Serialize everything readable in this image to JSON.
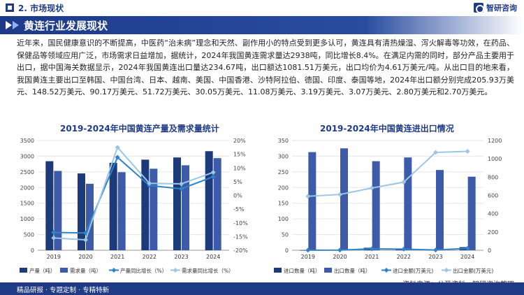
{
  "header": {
    "section": "2. 市场现状",
    "logo": "智研咨询",
    "icons": [
      "section-square-icon",
      "logo-mark-icon",
      "title-arrow-icon"
    ]
  },
  "title": "黄连行业发展现状",
  "paragraph": "近年来，国民健康意识的不断提高，中医药“治未病”理念和天然、副作用小的特点受到更多认可，黄连具有清热燥湿、泻火解毒等功效，在药品、保健品等领域应用广泛，市场需求日益增加，据统计，2024年我国黄连需求量达2938吨，同比增长8.4%。在满足内需的同时，部分产品主要用于出口，据中国海关数据显示，2024年我国黄连出口量达234.67吨，出口额达1081.51万美元，出口均价为4.61万美元/吨。从出口目的地来看，我国黄连主要出口至韩国、中国台湾、日本、越南、美国、中国香港、沙特阿拉伯、德国、印度、泰国等地，2024年出口额分别完成205.93万美元、148.52万美元、90.17万美元、51.72万美元、30.05万美元、11.08万美元、3.19万美元、3.07万美元、2.80万美元和2.70万美元。",
  "footer": {
    "left": "精品研报 · 专题定制 · 专精特新",
    "source": "资料来源：公开资料、智研咨询整理"
  },
  "chart_data": [
    {
      "type": "bar",
      "title": "2019-2024年中国黄连产量及需求量统计",
      "categories": [
        "2019",
        "2020",
        "2021",
        "2022",
        "2023",
        "2024"
      ],
      "ylim": [
        0,
        3500
      ],
      "yticks": [
        "0",
        "500",
        "1000",
        "1500",
        "2000",
        "2500",
        "3000",
        "3500"
      ],
      "y2lim": [
        -20,
        20
      ],
      "y2ticks": [
        "-20%",
        "-15%",
        "-10%",
        "-5%",
        "0%",
        "5%",
        "10%",
        "15%",
        "20%"
      ],
      "series": [
        {
          "name": "产量（吨）",
          "kind": "bar",
          "axis": "left",
          "color": "#1d3a7a",
          "values": [
            2840,
            2450,
            2790,
            2890,
            2960,
            3160
          ]
        },
        {
          "name": "需求量（吨）",
          "kind": "bar",
          "axis": "left",
          "color": "#3d5ba8",
          "values": [
            2530,
            2120,
            2490,
            2600,
            2710,
            2938
          ]
        },
        {
          "name": "产量同比增长（%）",
          "kind": "line",
          "axis": "right",
          "color": "#2f83c8",
          "values": [
            -13.5,
            -13.7,
            13.9,
            3.6,
            2.4,
            6.8
          ]
        },
        {
          "name": "需求量同比增长（%）",
          "kind": "line",
          "axis": "right",
          "color": "#9cc6e6",
          "values": [
            -15.5,
            -16.2,
            17.5,
            4.4,
            4.2,
            8.4
          ]
        }
      ]
    },
    {
      "type": "bar",
      "title": "2019-2024年中国黄连进出口情况",
      "categories": [
        "2019",
        "2020",
        "2021",
        "2022",
        "2023",
        "2024"
      ],
      "ylim": [
        0,
        350
      ],
      "yticks": [
        "0",
        "50",
        "100",
        "150",
        "200",
        "250",
        "300",
        "350"
      ],
      "y2lim": [
        0,
        1200
      ],
      "y2ticks": [
        "0",
        "200",
        "400",
        "600",
        "800",
        "1000",
        "1200"
      ],
      "series": [
        {
          "name": "进口数量（吨）",
          "kind": "bar",
          "axis": "left",
          "color": "#1d3a7a",
          "values": [
            0.5,
            1,
            8,
            5,
            1,
            10
          ]
        },
        {
          "name": "出口数量（吨）",
          "kind": "bar",
          "axis": "left",
          "color": "#3d5ba8",
          "values": [
            313,
            325,
            284,
            296,
            256,
            234.67
          ]
        },
        {
          "name": "进口金额(万美元)",
          "kind": "line",
          "axis": "right",
          "color": "#2f83c8",
          "values": [
            1,
            2,
            15,
            12,
            3,
            20
          ]
        },
        {
          "name": "出口金额(万美元)",
          "kind": "line",
          "axis": "right",
          "color": "#9cc6e6",
          "values": [
            590,
            610,
            680,
            745,
            1070,
            1081.51
          ]
        }
      ]
    }
  ]
}
